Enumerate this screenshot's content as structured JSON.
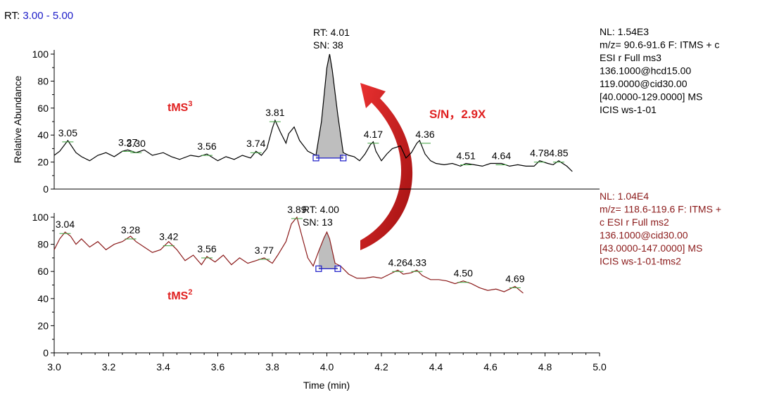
{
  "header": {
    "rt_label": "RT:",
    "rt_range": "3.00 - 5.00"
  },
  "colors": {
    "top": "#000000",
    "bottom": "#8B1A1A",
    "accent": "#E02020",
    "blue": "#1C1CC8",
    "peak_fill": "#BEBEBE",
    "green": "#3CA03C"
  },
  "chart_data": [
    {
      "type": "line",
      "title": "tMS³",
      "ylabel": "Relative Abundance",
      "xlabel": "Time (min)",
      "xlim": [
        3.0,
        5.0
      ],
      "ylim": [
        0,
        100
      ],
      "yticks": [
        "0",
        "20",
        "40",
        "60",
        "80",
        "100"
      ],
      "peak_rt": "RT: 4.01",
      "peak_sn": "SN: 38",
      "peak_labels": [
        "3.05",
        "3.27",
        "3.30",
        "3.56",
        "3.74",
        "3.81",
        "4.17",
        "4.36",
        "4.51",
        "4.64",
        "4.78",
        "4.85"
      ],
      "peak_label_values": [
        {
          "x": 3.05,
          "y": 36
        },
        {
          "x": 3.27,
          "y": 29
        },
        {
          "x": 3.3,
          "y": 28
        },
        {
          "x": 3.56,
          "y": 26
        },
        {
          "x": 3.74,
          "y": 28
        },
        {
          "x": 3.81,
          "y": 51
        },
        {
          "x": 4.17,
          "y": 35
        },
        {
          "x": 4.36,
          "y": 35
        },
        {
          "x": 4.51,
          "y": 19
        },
        {
          "x": 4.64,
          "y": 19
        },
        {
          "x": 4.78,
          "y": 21
        },
        {
          "x": 4.85,
          "y": 21
        }
      ],
      "series": [
        {
          "name": "tMS3",
          "x": [
            3.0,
            3.02,
            3.05,
            3.08,
            3.1,
            3.13,
            3.16,
            3.19,
            3.22,
            3.25,
            3.27,
            3.3,
            3.33,
            3.36,
            3.4,
            3.43,
            3.46,
            3.5,
            3.53,
            3.56,
            3.6,
            3.63,
            3.66,
            3.69,
            3.72,
            3.74,
            3.76,
            3.78,
            3.8,
            3.81,
            3.83,
            3.85,
            3.86,
            3.88,
            3.9,
            3.93,
            3.96,
            3.98,
            4.0,
            4.01,
            4.02,
            4.04,
            4.06,
            4.08,
            4.1,
            4.12,
            4.14,
            4.16,
            4.17,
            4.18,
            4.2,
            4.22,
            4.24,
            4.27,
            4.29,
            4.31,
            4.33,
            4.34,
            4.36,
            4.38,
            4.4,
            4.43,
            4.46,
            4.49,
            4.51,
            4.54,
            4.57,
            4.6,
            4.64,
            4.67,
            4.7,
            4.73,
            4.76,
            4.78,
            4.81,
            4.83,
            4.85,
            4.88,
            4.9
          ],
          "y": [
            25,
            28,
            36,
            27,
            24,
            21,
            25,
            27,
            24,
            28,
            29,
            27,
            29,
            25,
            27,
            24,
            22,
            25,
            24,
            26,
            21,
            24,
            22,
            25,
            23,
            28,
            25,
            30,
            45,
            51,
            42,
            34,
            41,
            46,
            36,
            28,
            25,
            50,
            90,
            100,
            88,
            55,
            27,
            25,
            24,
            21,
            26,
            33,
            35,
            28,
            21,
            26,
            30,
            32,
            23,
            27,
            34,
            36,
            26,
            21,
            19,
            18,
            19,
            17,
            19,
            18,
            17,
            19,
            19,
            17,
            18,
            17,
            17,
            21,
            19,
            18,
            21,
            17,
            13
          ]
        }
      ]
    },
    {
      "type": "line",
      "title": "tMS²",
      "ylabel": "Relative Abundance",
      "xlabel": "Time (min)",
      "xlim": [
        3.0,
        5.0
      ],
      "ylim": [
        0,
        100
      ],
      "yticks": [
        "0",
        "20",
        "40",
        "60",
        "80",
        "100"
      ],
      "xticks": [
        "3.0",
        "3.2",
        "3.4",
        "3.6",
        "3.8",
        "4.0",
        "4.2",
        "4.4",
        "4.6",
        "4.8",
        "5.0"
      ],
      "peak_rt": "RT: 4.00",
      "peak_sn": "SN: 13",
      "peak_labels": [
        "3.04",
        "3.28",
        "3.42",
        "3.56",
        "3.77",
        "3.89",
        "4.26",
        "4.33",
        "4.50",
        "4.69"
      ],
      "peak_label_values": [
        {
          "x": 3.04,
          "y": 89
        },
        {
          "x": 3.28,
          "y": 85
        },
        {
          "x": 3.42,
          "y": 80
        },
        {
          "x": 3.56,
          "y": 71
        },
        {
          "x": 3.77,
          "y": 70
        },
        {
          "x": 3.89,
          "y": 100
        },
        {
          "x": 4.26,
          "y": 61
        },
        {
          "x": 4.33,
          "y": 61
        },
        {
          "x": 4.5,
          "y": 53
        },
        {
          "x": 4.69,
          "y": 49
        }
      ],
      "series": [
        {
          "name": "tMS2",
          "x": [
            3.0,
            3.02,
            3.04,
            3.06,
            3.08,
            3.1,
            3.13,
            3.16,
            3.19,
            3.22,
            3.25,
            3.28,
            3.3,
            3.33,
            3.36,
            3.39,
            3.42,
            3.45,
            3.48,
            3.51,
            3.54,
            3.56,
            3.59,
            3.62,
            3.65,
            3.68,
            3.71,
            3.74,
            3.77,
            3.8,
            3.82,
            3.85,
            3.87,
            3.89,
            3.91,
            3.93,
            3.95,
            3.97,
            3.99,
            4.0,
            4.01,
            4.03,
            4.05,
            4.08,
            4.11,
            4.14,
            4.17,
            4.2,
            4.23,
            4.26,
            4.28,
            4.31,
            4.33,
            4.35,
            4.38,
            4.41,
            4.44,
            4.47,
            4.5,
            4.53,
            4.56,
            4.59,
            4.62,
            4.65,
            4.67,
            4.69,
            4.72
          ],
          "y": [
            76,
            84,
            89,
            86,
            80,
            84,
            78,
            82,
            76,
            80,
            82,
            86,
            82,
            78,
            74,
            76,
            82,
            76,
            68,
            72,
            65,
            71,
            67,
            72,
            65,
            70,
            66,
            68,
            70,
            66,
            72,
            82,
            95,
            100,
            85,
            70,
            64,
            75,
            85,
            89,
            84,
            66,
            64,
            58,
            55,
            55,
            56,
            55,
            58,
            61,
            58,
            59,
            61,
            57,
            54,
            54,
            53,
            51,
            53,
            51,
            48,
            46,
            47,
            45,
            47,
            49,
            44
          ]
        }
      ]
    }
  ],
  "annotations": {
    "top_trace_label": "tMS",
    "top_trace_sup": "3",
    "bottom_trace_label": "tMS",
    "bottom_trace_sup": "2",
    "sn_ratio": "S/N，2.9X"
  },
  "info_top": [
    "NL: 1.54E3",
    "m/z= 90.6-91.6 F: ITMS + c",
    "ESI r Full ms3",
    "136.1000@hcd15.00",
    "119.0000@cid30.00",
    "[40.0000-129.0000]  MS",
    "ICIS ws-1-01"
  ],
  "info_bottom": [
    "NL: 1.04E4",
    "m/z= 118.6-119.6 F: ITMS +",
    "c ESI r Full ms2",
    "136.1000@cid30.00",
    "[43.0000-147.0000]  MS",
    "ICIS ws-1-01-tms2"
  ]
}
